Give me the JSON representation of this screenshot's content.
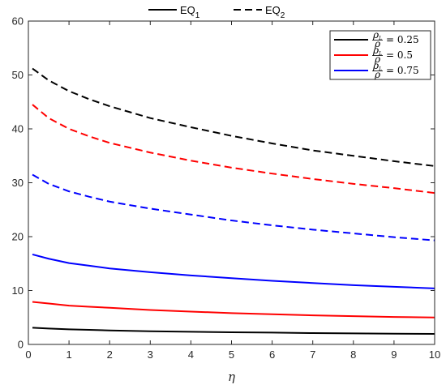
{
  "chart_data": {
    "type": "line",
    "xlabel": "η",
    "ylabel": "",
    "xlim": [
      0,
      10
    ],
    "ylim": [
      0,
      60
    ],
    "xticks": [
      "0",
      "1",
      "2",
      "3",
      "4",
      "5",
      "6",
      "7",
      "8",
      "9",
      "10"
    ],
    "yticks": [
      "0",
      "10",
      "20",
      "30",
      "40",
      "50",
      "60"
    ],
    "grid": false,
    "x": [
      0.1,
      0.5,
      1,
      1.5,
      2,
      3,
      4,
      5,
      6,
      7,
      8,
      9,
      10
    ],
    "style_legend": {
      "placement": "top-center-outside",
      "entries": [
        {
          "label_main": "EQ",
          "label_sub": "1",
          "dash": "solid"
        },
        {
          "label_main": "EQ",
          "label_sub": "2",
          "dash": "dashed"
        }
      ]
    },
    "color_legend": {
      "placement": "top-right",
      "entries": [
        {
          "num": "ρ",
          "num_sub": "L",
          "den": "ρ",
          "value": "= 0.25",
          "color": "#000000"
        },
        {
          "num": "ρ",
          "num_sub": "L",
          "den": "ρ",
          "value": "= 0.5",
          "color": "#ff0000"
        },
        {
          "num": "ρ",
          "num_sub": "L",
          "den": "ρ",
          "value": "= 0.75",
          "color": "#0000ff"
        }
      ]
    },
    "series": [
      {
        "color": "#000000",
        "dash": "solid",
        "values": [
          3.1,
          2.95,
          2.8,
          2.7,
          2.6,
          2.45,
          2.35,
          2.25,
          2.2,
          2.1,
          2.05,
          2.0,
          1.95
        ]
      },
      {
        "color": "#000000",
        "dash": "dashed",
        "values": [
          51.2,
          49.0,
          47.0,
          45.5,
          44.2,
          42.0,
          40.3,
          38.7,
          37.3,
          36.0,
          35.0,
          34.0,
          33.1
        ]
      },
      {
        "color": "#ff0000",
        "dash": "solid",
        "values": [
          7.9,
          7.6,
          7.2,
          7.0,
          6.8,
          6.4,
          6.1,
          5.8,
          5.6,
          5.4,
          5.25,
          5.1,
          5.0
        ]
      },
      {
        "color": "#ff0000",
        "dash": "dashed",
        "values": [
          44.5,
          42.0,
          40.0,
          38.6,
          37.4,
          35.6,
          34.1,
          32.8,
          31.7,
          30.7,
          29.8,
          29.0,
          28.1
        ]
      },
      {
        "color": "#0000ff",
        "dash": "solid",
        "values": [
          16.7,
          15.9,
          15.1,
          14.6,
          14.1,
          13.4,
          12.8,
          12.3,
          11.8,
          11.4,
          11.0,
          10.7,
          10.4
        ]
      },
      {
        "color": "#0000ff",
        "dash": "dashed",
        "values": [
          31.5,
          29.8,
          28.4,
          27.4,
          26.5,
          25.2,
          24.1,
          23.0,
          22.1,
          21.3,
          20.6,
          19.9,
          19.3
        ]
      }
    ]
  }
}
